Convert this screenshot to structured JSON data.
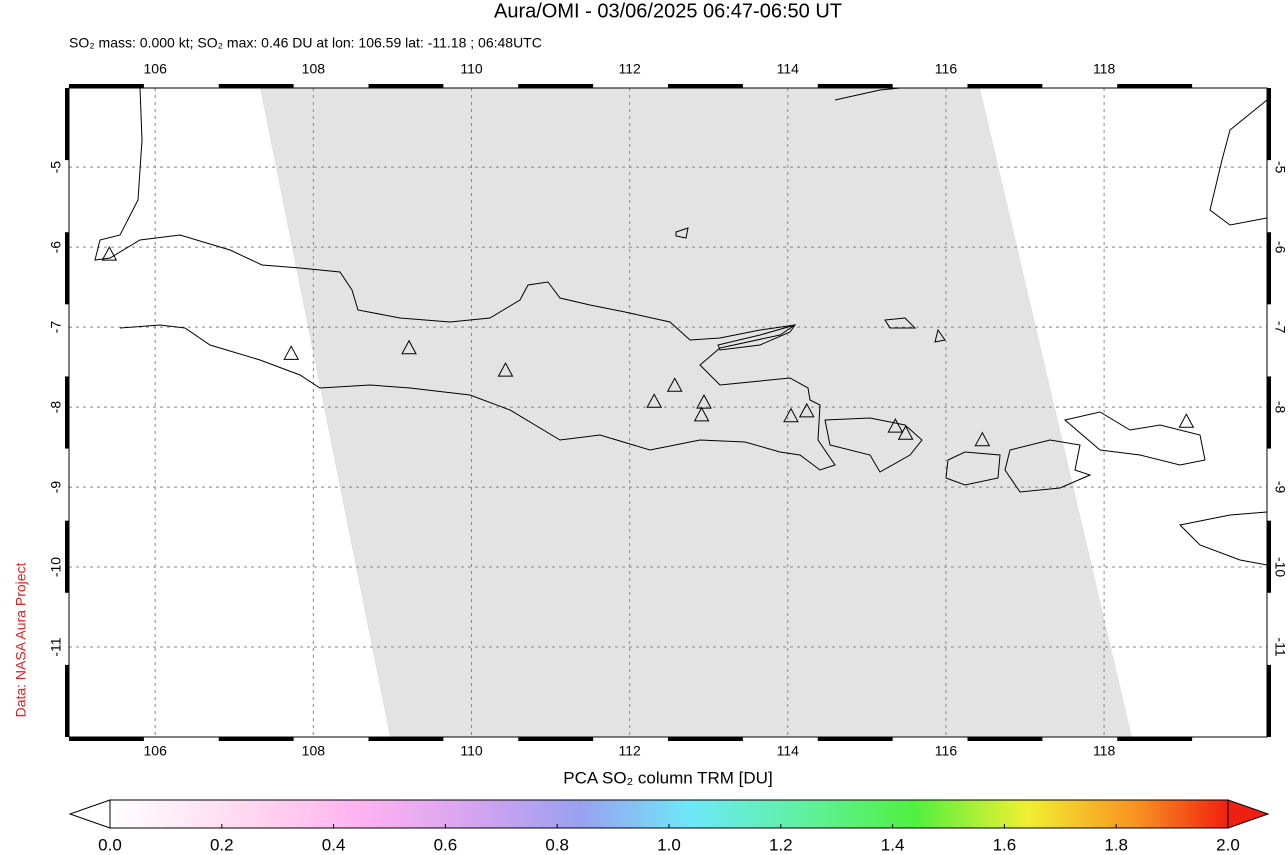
{
  "title": "Aura/OMI - 03/06/2025 06:47-06:50 UT",
  "subtitle": "SO₂ mass: 0.000 kt; SO₂ max: 0.46 DU at lon: 106.59 lat: -11.18 ; 06:48UTC",
  "credit": "Data: NASA Aura Project",
  "map": {
    "lonlim": [
      104.91,
      120.06
    ],
    "latlim": [
      -12.125,
      -4.01
    ],
    "lonticks": [
      106,
      108,
      110,
      112,
      114,
      116,
      118
    ],
    "latticks": [
      -5,
      -6,
      -7,
      -8,
      -9,
      -10,
      -11
    ],
    "grid": true,
    "volcanoes": {
      "lon": [
        105.42,
        107.72,
        109.21,
        110.43,
        112.31,
        112.57,
        112.94,
        112.91,
        114.04,
        114.24,
        115.36,
        115.49,
        116.46,
        119.04
      ],
      "lat": [
        -6.1,
        -7.34,
        -7.27,
        -7.55,
        -7.94,
        -7.74,
        -7.95,
        -8.11,
        -8.12,
        -8.06,
        -8.25,
        -8.34,
        -8.42,
        -8.19
      ]
    }
  },
  "colorbar": {
    "label": "PCA SO₂ column TRM [DU]",
    "lim": [
      0,
      2
    ],
    "ticks": [
      {
        "value": 0,
        "label": "0.0"
      },
      0.2,
      0.4,
      0.6,
      0.8,
      {
        "value": 1,
        "label": "1.0"
      },
      1.2,
      1.4,
      1.6,
      1.8,
      {
        "value": 2,
        "label": "2.0"
      }
    ]
  }
}
